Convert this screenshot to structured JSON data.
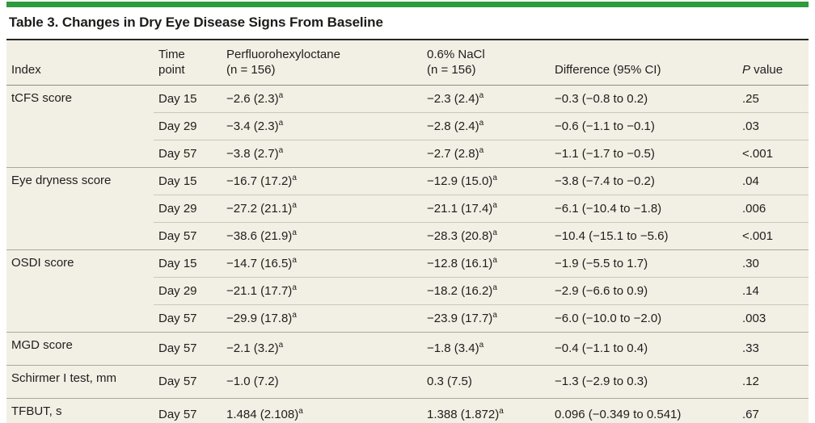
{
  "page": {
    "title": "Table 3. Changes in Dry Eye Disease Signs From Baseline",
    "accent_color": "#2e9b3d",
    "table_bg_color": "#f2efe5"
  },
  "table": {
    "headers": [
      {
        "id": "index",
        "lines": [
          "Index"
        ]
      },
      {
        "id": "time-point",
        "lines": [
          "Time",
          "point"
        ]
      },
      {
        "id": "perfluorohexyloctane",
        "lines": [
          "Perfluorohexyloctane",
          "(n = 156)"
        ]
      },
      {
        "id": "nacl",
        "lines": [
          "0.6% NaCl",
          "(n = 156)"
        ]
      },
      {
        "id": "difference",
        "lines": [
          "Difference (95% CI)"
        ]
      },
      {
        "id": "p-value",
        "lines": [
          "P value"
        ],
        "italic_first": true
      }
    ],
    "groups": [
      {
        "index": "tCFS score",
        "rows": [
          {
            "time": "Day 15",
            "pfh": "−2.6 (2.3)",
            "pfh_sup": "a",
            "nacl": "−2.3 (2.4)",
            "nacl_sup": "a",
            "diff": "−0.3 (−0.8 to 0.2)",
            "p": ".25"
          },
          {
            "time": "Day 29",
            "pfh": "−3.4 (2.3)",
            "pfh_sup": "a",
            "nacl": "−2.8 (2.4)",
            "nacl_sup": "a",
            "diff": "−0.6 (−1.1 to −0.1)",
            "p": ".03"
          },
          {
            "time": "Day 57",
            "pfh": "−3.8 (2.7)",
            "pfh_sup": "a",
            "nacl": "−2.7 (2.8)",
            "nacl_sup": "a",
            "diff": "−1.1 (−1.7 to −0.5)",
            "p": "<.001"
          }
        ]
      },
      {
        "index": "Eye dryness score",
        "rows": [
          {
            "time": "Day 15",
            "pfh": "−16.7 (17.2)",
            "pfh_sup": "a",
            "nacl": "−12.9 (15.0)",
            "nacl_sup": "a",
            "diff": "−3.8 (−7.4 to −0.2)",
            "p": ".04"
          },
          {
            "time": "Day 29",
            "pfh": "−27.2 (21.1)",
            "pfh_sup": "a",
            "nacl": "−21.1 (17.4)",
            "nacl_sup": "a",
            "diff": "−6.1 (−10.4 to −1.8)",
            "p": ".006"
          },
          {
            "time": "Day 57",
            "pfh": "−38.6 (21.9)",
            "pfh_sup": "a",
            "nacl": "−28.3 (20.8)",
            "nacl_sup": "a",
            "diff": "−10.4 (−15.1 to −5.6)",
            "p": "<.001"
          }
        ]
      },
      {
        "index": "OSDI score",
        "rows": [
          {
            "time": "Day 15",
            "pfh": "−14.7 (16.5)",
            "pfh_sup": "a",
            "nacl": "−12.8 (16.1)",
            "nacl_sup": "a",
            "diff": "−1.9 (−5.5 to 1.7)",
            "p": ".30"
          },
          {
            "time": "Day 29",
            "pfh": "−21.1 (17.7)",
            "pfh_sup": "a",
            "nacl": "−18.2 (16.2)",
            "nacl_sup": "a",
            "diff": "−2.9 (−6.6 to 0.9)",
            "p": ".14"
          },
          {
            "time": "Day 57",
            "pfh": "−29.9 (17.8)",
            "pfh_sup": "a",
            "nacl": "−23.9 (17.7)",
            "nacl_sup": "a",
            "diff": "−6.0 (−10.0 to −2.0)",
            "p": ".003"
          }
        ]
      },
      {
        "index": "MGD score",
        "rows": [
          {
            "time": "Day 57",
            "pfh": "−2.1 (3.2)",
            "pfh_sup": "a",
            "nacl": "−1.8 (3.4)",
            "nacl_sup": "a",
            "diff": "−0.4 (−1.1 to 0.4)",
            "p": ".33"
          }
        ]
      },
      {
        "index": "Schirmer I test, mm",
        "rows": [
          {
            "time": "Day 57",
            "pfh": "−1.0 (7.2)",
            "pfh_sup": "",
            "nacl": "0.3 (7.5)",
            "nacl_sup": "",
            "diff": "−1.3 (−2.9 to 0.3)",
            "p": ".12"
          }
        ]
      },
      {
        "index": "TFBUT, s",
        "rows": [
          {
            "time": "Day 57",
            "pfh": "1.484 (2.108)",
            "pfh_sup": "a",
            "nacl": "1.388 (1.872)",
            "nacl_sup": "a",
            "diff": "0.096 (−0.349 to 0.541)",
            "p": ".67"
          }
        ]
      }
    ]
  }
}
